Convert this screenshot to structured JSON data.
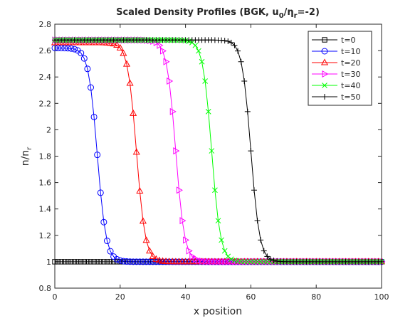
{
  "chart_data": {
    "type": "line",
    "title_main": "Scaled Density Profiles (BGK, u",
    "title_sub0": "0",
    "title_slash": "/",
    "title_eta": "η",
    "title_subr": "r",
    "title_end": "=-2)",
    "xlabel": "x position",
    "ylabel_n": "n/n",
    "ylabel_sub": "r",
    "xlim": [
      0,
      100
    ],
    "ylim": [
      0.8,
      2.8
    ],
    "xticks": [
      0,
      20,
      40,
      60,
      80,
      100
    ],
    "xtick_labels": [
      "0",
      "20",
      "40",
      "60",
      "80",
      "100"
    ],
    "yticks": [
      0.8,
      1,
      1.2,
      1.4,
      1.6,
      1.8,
      2,
      2.2,
      2.4,
      2.6,
      2.8
    ],
    "ytick_labels": [
      "0.8",
      "1",
      "1.2",
      "1.4",
      "1.6",
      "1.8",
      "2",
      "2.2",
      "2.4",
      "2.6",
      "2.8"
    ],
    "grid": false,
    "legend_position": "top-right",
    "series": [
      {
        "name": "t=0",
        "color": "#000000",
        "marker": "square",
        "front": 0,
        "left_level": 1.0,
        "right_level": 1.0,
        "width": 1.0
      },
      {
        "name": "t=10",
        "color": "#0000ff",
        "marker": "circle",
        "front": 13,
        "left_level": 2.62,
        "right_level": 1.0,
        "width": 1.0
      },
      {
        "name": "t=20",
        "color": "#ff0000",
        "marker": "triangle-up",
        "front": 25,
        "left_level": 2.66,
        "right_level": 1.0,
        "width": 1.0
      },
      {
        "name": "t=30",
        "color": "#ff00ff",
        "marker": "triangle-right",
        "front": 37,
        "left_level": 2.68,
        "right_level": 1.0,
        "width": 1.0
      },
      {
        "name": "t=40",
        "color": "#00ff00",
        "marker": "x",
        "front": 48,
        "left_level": 2.68,
        "right_level": 1.0,
        "width": 1.0
      },
      {
        "name": "t=50",
        "color": "#000000",
        "marker": "plus",
        "front": 60,
        "left_level": 2.68,
        "right_level": 1.0,
        "width": 1.0
      }
    ],
    "x_samples": {
      "start": 0,
      "end": 100,
      "step": 1
    }
  }
}
